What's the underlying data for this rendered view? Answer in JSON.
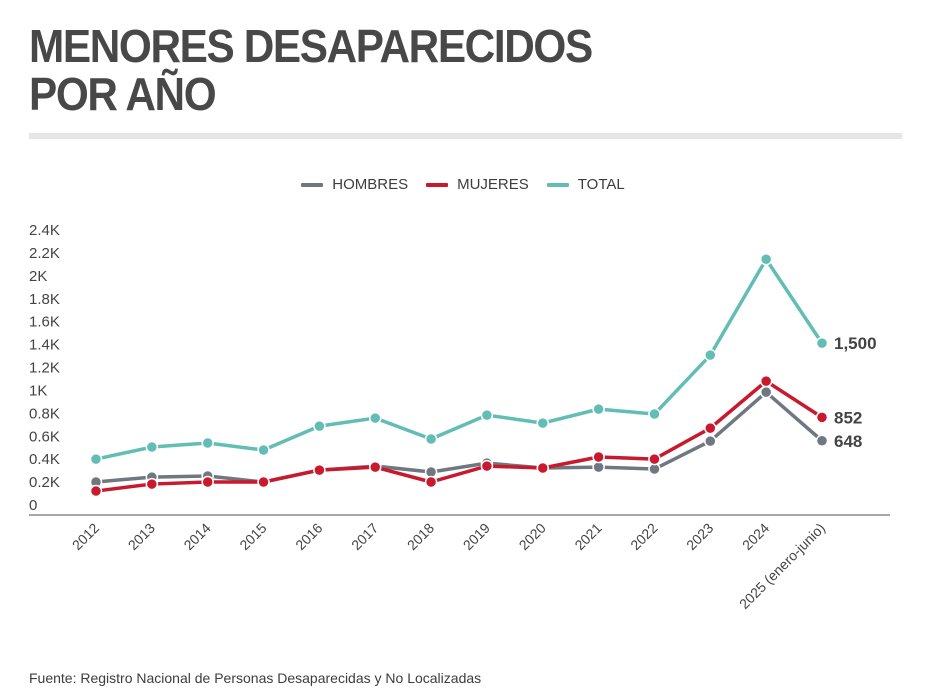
{
  "header": {
    "title_lines": [
      "MENORES DESAPARECIDOS",
      "POR AÑO"
    ]
  },
  "footer": {
    "source": "Fuente: Registro Nacional de Personas Desaparecidas y No Localizadas"
  },
  "chart_data": {
    "type": "line",
    "title": "MENORES DESAPARECIDOS POR AÑO",
    "xlabel": "",
    "ylabel": "",
    "categories": [
      "2012",
      "2013",
      "2014",
      "2015",
      "2016",
      "2017",
      "2018",
      "2019",
      "2020",
      "2021",
      "2022",
      "2023",
      "2024",
      "2025 (enero-junio)"
    ],
    "ylim": [
      0,
      2400
    ],
    "yticks": [
      0,
      200,
      400,
      600,
      800,
      1000,
      1200,
      1400,
      1600,
      1800,
      2000,
      2200,
      2400
    ],
    "ytick_labels": [
      "0",
      "0.2K",
      "0.4K",
      "0.6K",
      "0.8K",
      "1K",
      "1.2K",
      "1.4K",
      "1.6K",
      "1.8K",
      "2K",
      "2.2K",
      "2.4K"
    ],
    "grid": false,
    "legend_position": "top-center",
    "series": [
      {
        "name": "HOMBRES",
        "color": "#6f7780",
        "values": [
          288,
          331,
          340,
          288,
          392,
          427,
          375,
          453,
          410,
          418,
          401,
          645,
          1072,
          648
        ],
        "end_label": "648"
      },
      {
        "name": "MUJERES",
        "color": "#c8192d",
        "values": [
          209,
          270,
          288,
          288,
          392,
          418,
          288,
          427,
          410,
          506,
          488,
          758,
          1168,
          852
        ],
        "end_label": "852"
      },
      {
        "name": "TOTAL",
        "color": "#62bdb5",
        "values": [
          488,
          593,
          628,
          567,
          776,
          846,
          663,
          872,
          802,
          924,
          881,
          1395,
          2232,
          1500
        ],
        "end_label": "1,500"
      }
    ]
  }
}
